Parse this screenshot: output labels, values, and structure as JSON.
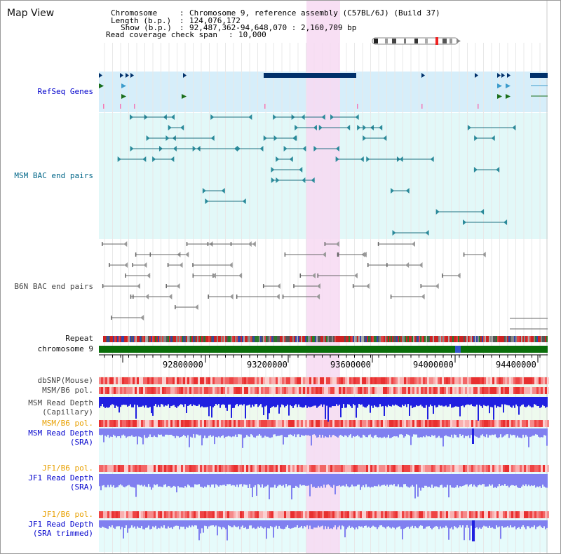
{
  "window": {
    "title": "Map View"
  },
  "header": {
    "chromosome_key": "Chromosome",
    "chromosome_val": "Chromosome 9, reference assembly (C57BL/6J) (Build 37)",
    "length_key": "Length (b.p.)",
    "length_val": "124,076,172",
    "show_key": "Show (b.p.)",
    "show_val": "92,487,362-94,648,070 : 2,160,709 bp",
    "span_key": "Read coverage check span",
    "span_val": "10,000"
  },
  "tracks": {
    "refseq": "RefSeq Genes",
    "msm_bac": "MSM BAC end pairs",
    "b6n_bac": "B6N BAC end pairs",
    "repeat": "Repeat",
    "chromosome": "chromosome 9",
    "dbsnp": "dbSNP(Mouse)",
    "msm_b6_pol_1": "MSM/B6 pol.",
    "msm_depth_cap_1": "MSM Read Depth",
    "msm_depth_cap_2": "(Capillary)",
    "msm_b6_pol_2": "MSM/B6 pol.",
    "msm_depth_sra_1": "MSM Read Depth",
    "msm_depth_sra_2": "(SRA)",
    "jf1_b6_pol_1": "JF1/B6 pol.",
    "jf1_depth_sra_1": "JF1 Read Depth",
    "jf1_depth_sra_2": "(SRA)",
    "jf1_b6_pol_2": "JF1/B6 pol.",
    "jf1_depth_trim_1": "JF1 Read Depth",
    "jf1_depth_trim_2": "(SRA trimmed)"
  },
  "axis": {
    "ticks": [
      "92800000",
      "93200000",
      "93600000",
      "94000000",
      "94400000"
    ]
  },
  "colors": {
    "highlight": "#f7d9f2",
    "refseq_bg": "#d6eefa",
    "msm_bg": "#e2f8f8",
    "gene_navy": "#00306a",
    "gene_sky": "#3d9ccc",
    "gene_green": "#1a6e1a",
    "chromosome_bar": "#0a6e0a",
    "depth_blue": "#2020e0",
    "depth_lilac": "#8080f0",
    "snp_red": "#ee3333"
  }
}
